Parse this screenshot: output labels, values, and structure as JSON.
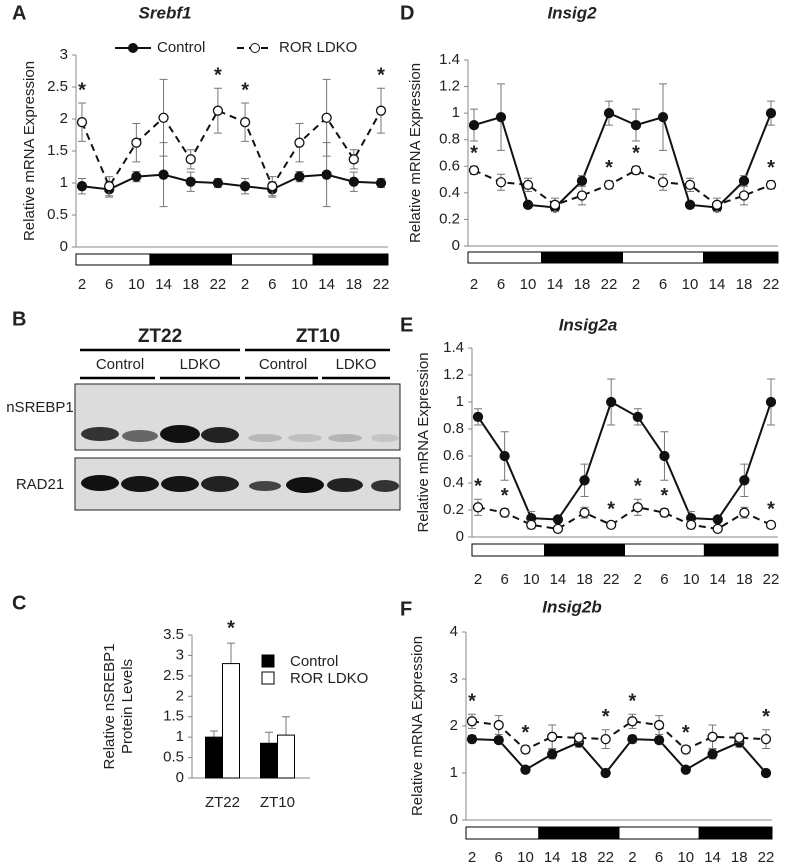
{
  "chart_data": [
    {
      "type": "line",
      "panel": "A",
      "title": "Srebf1",
      "ylabel": "Relative mRNA Expression",
      "categories": [
        "2",
        "6",
        "10",
        "14",
        "18",
        "22",
        "2",
        "6",
        "10",
        "14",
        "18",
        "22"
      ],
      "ylim": [
        0,
        3
      ],
      "yticks": [
        0,
        0.5,
        1,
        1.5,
        2,
        2.5,
        3
      ],
      "legend": "top",
      "series": [
        {
          "name": "Control",
          "color": "#111111",
          "dash": "solid",
          "marker": "filled",
          "values": [
            0.95,
            0.9,
            1.1,
            1.13,
            1.02,
            1.0,
            0.95,
            0.9,
            1.1,
            1.13,
            1.02,
            1.0
          ],
          "errors": [
            0.12,
            0.12,
            0.08,
            0.5,
            0.15,
            0.07,
            0.12,
            0.12,
            0.08,
            0.5,
            0.15,
            0.07
          ]
        },
        {
          "name": "ROR LDKO",
          "color": "#111111",
          "dash": "dashed",
          "marker": "open",
          "values": [
            1.95,
            0.95,
            1.63,
            2.02,
            1.37,
            2.13,
            1.95,
            0.95,
            1.63,
            2.02,
            1.37,
            2.13
          ],
          "errors": [
            0.3,
            0.15,
            0.3,
            0.6,
            0.15,
            0.35,
            0.3,
            0.15,
            0.3,
            0.6,
            0.15,
            0.35
          ],
          "annotations": [
            "*",
            null,
            null,
            null,
            null,
            "*",
            "*",
            null,
            null,
            null,
            null,
            "*"
          ]
        }
      ]
    },
    {
      "type": "bar",
      "panel": "C",
      "ylabel": [
        "Relative nSREBP1",
        "Protein Levels"
      ],
      "categories": [
        "ZT22",
        "ZT10"
      ],
      "ylim": [
        0,
        3.5
      ],
      "yticks": [
        0,
        0.5,
        1,
        1.5,
        2,
        2.5,
        3,
        3.5
      ],
      "legend": "right",
      "series": [
        {
          "name": "Control",
          "color": "#000000",
          "values": [
            1.0,
            0.85
          ],
          "errors": [
            0.15,
            0.27
          ]
        },
        {
          "name": "ROR LDKO",
          "color": "#ffffff",
          "values": [
            2.8,
            1.05
          ],
          "errors": [
            0.5,
            0.45
          ],
          "annotations": [
            "*",
            null
          ]
        }
      ]
    },
    {
      "type": "line",
      "panel": "D",
      "title": "Insig2",
      "ylabel": "Relative mRNA Expression",
      "categories": [
        "2",
        "6",
        "10",
        "14",
        "18",
        "22",
        "2",
        "6",
        "10",
        "14",
        "18",
        "22"
      ],
      "ylim": [
        0,
        1.4
      ],
      "yticks": [
        0,
        0.2,
        0.4,
        0.6,
        0.8,
        1,
        1.2,
        1.4
      ],
      "series": [
        {
          "name": "Control",
          "color": "#111111",
          "dash": "solid",
          "marker": "filled",
          "values": [
            0.91,
            0.97,
            0.31,
            0.29,
            0.49,
            1.0,
            0.91,
            0.97,
            0.31,
            0.29,
            0.49,
            1.0
          ],
          "errors": [
            0.12,
            0.25,
            0.02,
            0.03,
            0.04,
            0.09,
            0.12,
            0.25,
            0.02,
            0.03,
            0.04,
            0.09
          ]
        },
        {
          "name": "ROR LDKO",
          "color": "#111111",
          "dash": "dashed",
          "marker": "open",
          "values": [
            0.57,
            0.48,
            0.46,
            0.31,
            0.38,
            0.46,
            0.57,
            0.48,
            0.46,
            0.31,
            0.38,
            0.46
          ],
          "errors": [
            0.03,
            0.06,
            0.05,
            0.05,
            0.07,
            0.03,
            0.03,
            0.06,
            0.05,
            0.05,
            0.07,
            0.03
          ],
          "annotations": [
            "*",
            null,
            null,
            null,
            null,
            "*",
            "*",
            null,
            null,
            null,
            null,
            "*"
          ]
        }
      ]
    },
    {
      "type": "line",
      "panel": "E",
      "title": "Insig2a",
      "ylabel": "Relative mRNA Expression",
      "categories": [
        "2",
        "6",
        "10",
        "14",
        "18",
        "22",
        "2",
        "6",
        "10",
        "14",
        "18",
        "22"
      ],
      "ylim": [
        0,
        1.4
      ],
      "yticks": [
        0,
        0.2,
        0.4,
        0.6,
        0.8,
        1,
        1.2,
        1.4
      ],
      "series": [
        {
          "name": "Control",
          "color": "#111111",
          "dash": "solid",
          "marker": "filled",
          "values": [
            0.89,
            0.6,
            0.14,
            0.13,
            0.42,
            1.0,
            0.89,
            0.6,
            0.14,
            0.13,
            0.42,
            1.0
          ],
          "errors": [
            0.06,
            0.18,
            0.05,
            0.02,
            0.12,
            0.17,
            0.06,
            0.18,
            0.05,
            0.02,
            0.12,
            0.17
          ]
        },
        {
          "name": "ROR LDKO",
          "color": "#111111",
          "dash": "dashed",
          "marker": "open",
          "values": [
            0.22,
            0.18,
            0.09,
            0.06,
            0.18,
            0.09,
            0.22,
            0.18,
            0.09,
            0.06,
            0.18,
            0.09
          ],
          "errors": [
            0.06,
            0.03,
            0.03,
            0.02,
            0.04,
            0.02,
            0.06,
            0.03,
            0.03,
            0.02,
            0.04,
            0.02
          ],
          "annotations": [
            "*",
            "*",
            null,
            null,
            null,
            "*",
            "*",
            "*",
            null,
            null,
            null,
            "*"
          ]
        }
      ]
    },
    {
      "type": "line",
      "panel": "F",
      "title": "Insig2b",
      "ylabel": "Relative mRNA Expression",
      "categories": [
        "2",
        "6",
        "10",
        "14",
        "18",
        "22",
        "2",
        "6",
        "10",
        "14",
        "18",
        "22"
      ],
      "ylim": [
        0,
        4
      ],
      "yticks": [
        0,
        1,
        2,
        3,
        4
      ],
      "series": [
        {
          "name": "Control",
          "color": "#111111",
          "dash": "solid",
          "marker": "filled",
          "values": [
            1.72,
            1.7,
            1.07,
            1.4,
            1.65,
            1.0,
            1.72,
            1.7,
            1.07,
            1.4,
            1.65,
            1.0
          ],
          "errors": [
            0.08,
            0.07,
            0.07,
            0.1,
            0.1,
            0.07,
            0.08,
            0.07,
            0.07,
            0.1,
            0.1,
            0.07
          ]
        },
        {
          "name": "ROR LDKO",
          "color": "#111111",
          "dash": "dashed",
          "marker": "open",
          "values": [
            2.1,
            2.02,
            1.5,
            1.77,
            1.75,
            1.72,
            2.1,
            2.02,
            1.5,
            1.77,
            1.75,
            1.72
          ],
          "errors": [
            0.15,
            0.2,
            0.08,
            0.25,
            0.1,
            0.2,
            0.15,
            0.2,
            0.08,
            0.25,
            0.1,
            0.2
          ],
          "annotations": [
            "*",
            null,
            "*",
            null,
            null,
            "*",
            "*",
            null,
            "*",
            null,
            null,
            "*"
          ]
        }
      ]
    }
  ],
  "blot": {
    "panel": "B",
    "groups": [
      {
        "label": "ZT22",
        "lanes": [
          "Control",
          "LDKO"
        ]
      },
      {
        "label": "ZT10",
        "lanes": [
          "Control",
          "LDKO"
        ]
      }
    ],
    "rows": [
      "nSREBP1",
      "RAD21"
    ]
  }
}
